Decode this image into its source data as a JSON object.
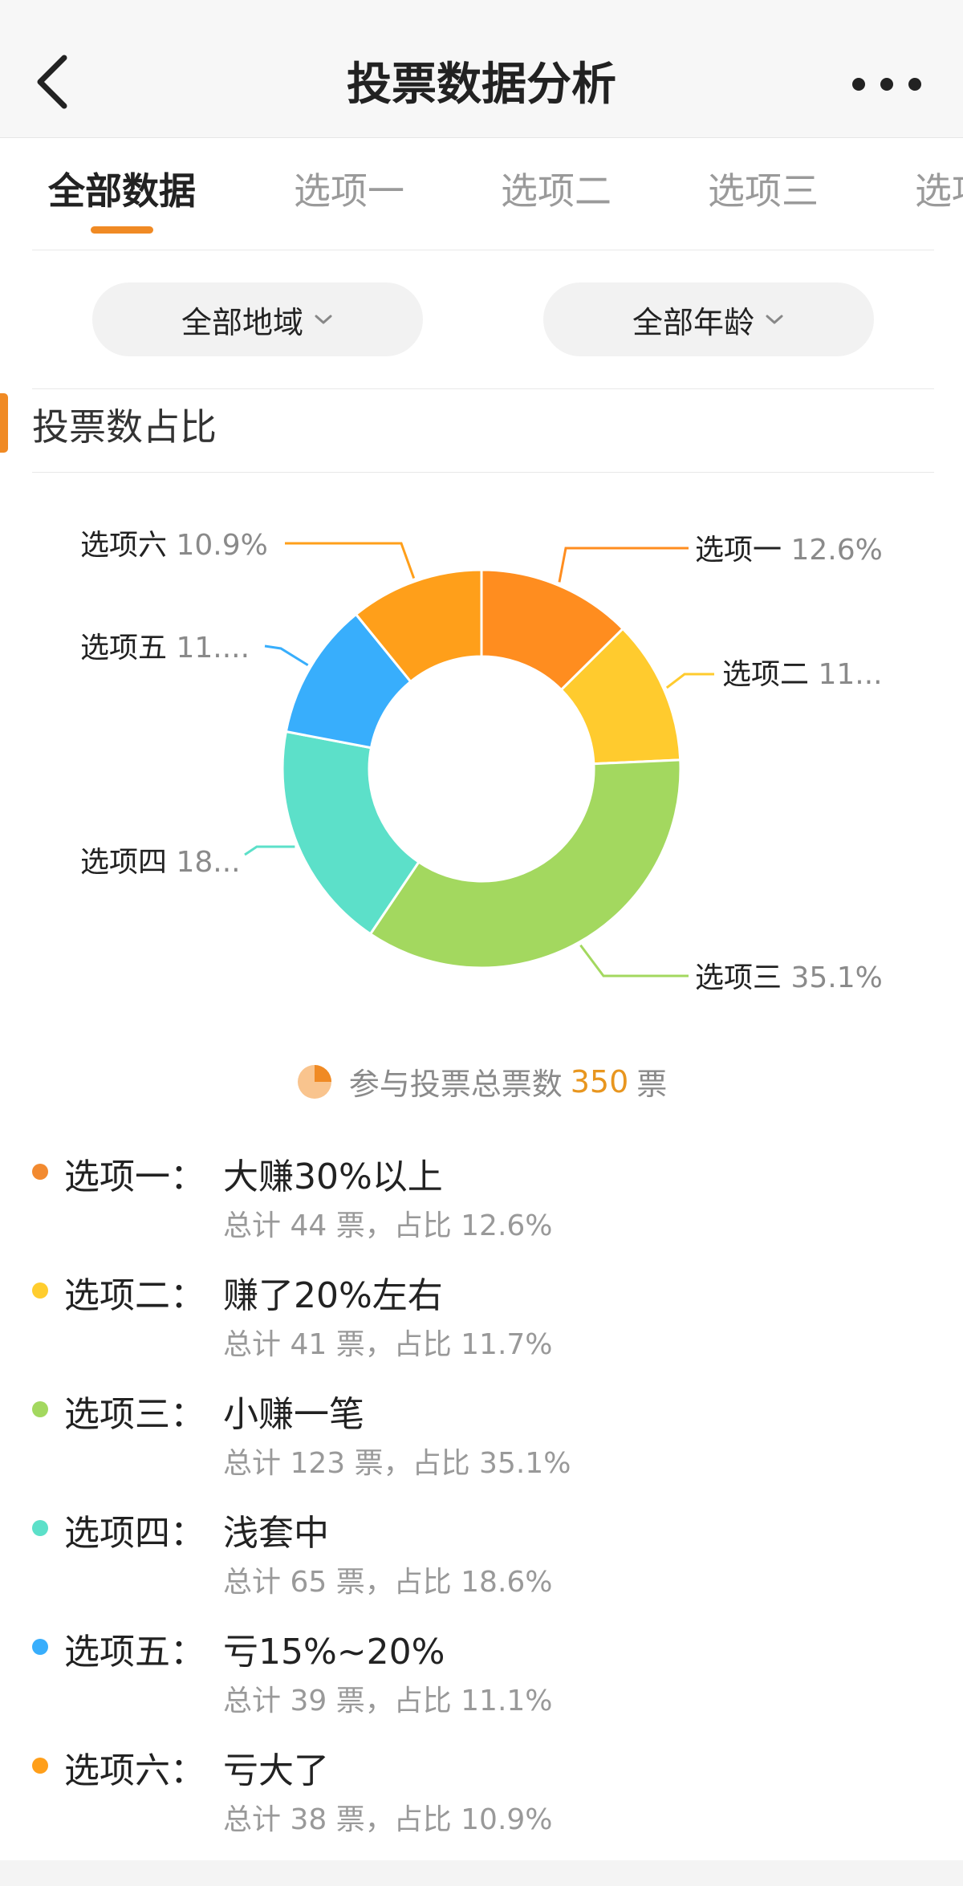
{
  "header": {
    "title": "投票数据分析"
  },
  "tabs": [
    {
      "label": "全部数据"
    },
    {
      "label": "选项一"
    },
    {
      "label": "选项二"
    },
    {
      "label": "选项三"
    },
    {
      "label": "选项四"
    }
  ],
  "filters": {
    "region": "全部地域",
    "age": "全部年龄"
  },
  "section": {
    "title": "投票数占比"
  },
  "chart_data": {
    "type": "pie",
    "donut": true,
    "labels": [
      "选项一",
      "选项二",
      "选项三",
      "选项四",
      "选项五",
      "选项六"
    ],
    "values": [
      44,
      41,
      123,
      65,
      39,
      38
    ],
    "percent_labels": [
      "12.6%",
      "11...",
      "35.1%",
      "18...",
      "11....",
      "10.9%"
    ],
    "colors": [
      "#ff8d1f",
      "#ffcb2e",
      "#a3d85f",
      "#5ce0c9",
      "#38aefc",
      "#ff9f1a"
    ],
    "legend_position": "none"
  },
  "total": {
    "prefix": "参与投票总票数",
    "count": "350",
    "unit": "票"
  },
  "options": [
    {
      "label": "选项一：",
      "desc": "大赚30%以上",
      "sub": "总计 44 票，占比 12.6%",
      "color": "#f28a30"
    },
    {
      "label": "选项二：",
      "desc": "赚了20%左右",
      "sub": "总计 41 票，占比 11.7%",
      "color": "#ffcd2e"
    },
    {
      "label": "选项三：",
      "desc": "小赚一笔",
      "sub": "总计 123 票，占比 35.1%",
      "color": "#a3d85f"
    },
    {
      "label": "选项四：",
      "desc": "浅套中",
      "sub": "总计 65 票，占比 18.6%",
      "color": "#5ce0c9"
    },
    {
      "label": "选项五：",
      "desc": "亏15%~20%",
      "sub": "总计 39 票，占比 11.1%",
      "color": "#38aefc"
    },
    {
      "label": "选项六：",
      "desc": "亏大了",
      "sub": "总计 38 票，占比 10.9%",
      "color": "#ff9f1a"
    }
  ]
}
